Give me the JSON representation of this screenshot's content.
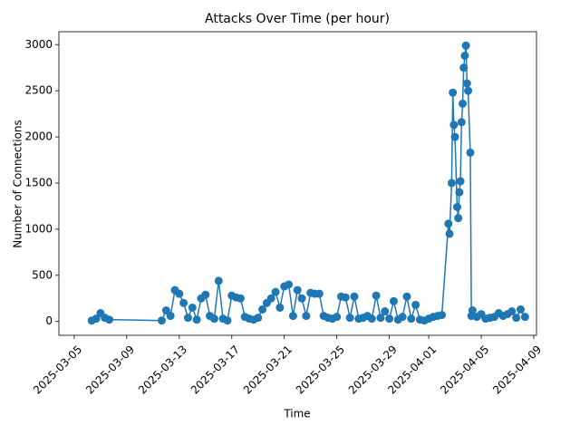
{
  "chart_data": {
    "type": "line",
    "title": "Attacks Over Time (per hour)",
    "x_label": "Time",
    "y_label": "Number of Connections",
    "color": "#1f77b4",
    "x": [
      "2025-03-06T08:00",
      "2025-03-06T16:00",
      "2025-03-07T00:00",
      "2025-03-07T08:00",
      "2025-03-07T16:00",
      "2025-03-11T16:00",
      "2025-03-12T00:00",
      "2025-03-12T08:00",
      "2025-03-12T16:00",
      "2025-03-13T00:00",
      "2025-03-13T08:00",
      "2025-03-13T16:00",
      "2025-03-14T00:00",
      "2025-03-14T08:00",
      "2025-03-14T16:00",
      "2025-03-15T00:00",
      "2025-03-15T08:00",
      "2025-03-15T16:00",
      "2025-03-16T00:00",
      "2025-03-16T08:00",
      "2025-03-16T16:00",
      "2025-03-17T00:00",
      "2025-03-17T08:00",
      "2025-03-17T16:00",
      "2025-03-18T00:00",
      "2025-03-18T08:00",
      "2025-03-18T16:00",
      "2025-03-19T00:00",
      "2025-03-19T08:00",
      "2025-03-19T16:00",
      "2025-03-20T00:00",
      "2025-03-20T08:00",
      "2025-03-20T16:00",
      "2025-03-21T00:00",
      "2025-03-21T08:00",
      "2025-03-21T16:00",
      "2025-03-22T00:00",
      "2025-03-22T08:00",
      "2025-03-22T16:00",
      "2025-03-23T00:00",
      "2025-03-23T08:00",
      "2025-03-23T16:00",
      "2025-03-24T00:00",
      "2025-03-24T08:00",
      "2025-03-24T16:00",
      "2025-03-25T00:00",
      "2025-03-25T08:00",
      "2025-03-25T16:00",
      "2025-03-26T00:00",
      "2025-03-26T08:00",
      "2025-03-26T16:00",
      "2025-03-27T00:00",
      "2025-03-27T08:00",
      "2025-03-27T16:00",
      "2025-03-28T00:00",
      "2025-03-28T08:00",
      "2025-03-28T16:00",
      "2025-03-29T00:00",
      "2025-03-29T08:00",
      "2025-03-29T16:00",
      "2025-03-30T00:00",
      "2025-03-30T08:00",
      "2025-03-30T16:00",
      "2025-03-31T00:00",
      "2025-03-31T08:00",
      "2025-03-31T16:00",
      "2025-04-01T00:00",
      "2025-04-01T08:00",
      "2025-04-01T16:00",
      "2025-04-02T00:00",
      "2025-04-02T12:00",
      "2025-04-02T14:00",
      "2025-04-02T18:00",
      "2025-04-02T20:00",
      "2025-04-02T22:00",
      "2025-04-03T00:00",
      "2025-04-03T04:00",
      "2025-04-03T06:00",
      "2025-04-03T08:00",
      "2025-04-03T10:00",
      "2025-04-03T12:00",
      "2025-04-03T14:00",
      "2025-04-03T16:00",
      "2025-04-03T18:00",
      "2025-04-03T20:00",
      "2025-04-03T22:00",
      "2025-04-04T00:00",
      "2025-04-04T04:00",
      "2025-04-04T06:00",
      "2025-04-04T08:00",
      "2025-04-04T16:00",
      "2025-04-05T00:00",
      "2025-04-05T08:00",
      "2025-04-05T16:00",
      "2025-04-06T00:00",
      "2025-04-06T08:00",
      "2025-04-06T16:00",
      "2025-04-07T00:00",
      "2025-04-07T08:00",
      "2025-04-07T16:00",
      "2025-04-08T00:00",
      "2025-04-08T08:00"
    ],
    "values": [
      10,
      30,
      90,
      40,
      20,
      10,
      120,
      60,
      340,
      300,
      200,
      40,
      150,
      20,
      250,
      290,
      60,
      30,
      440,
      30,
      10,
      280,
      260,
      250,
      50,
      30,
      20,
      40,
      130,
      200,
      250,
      320,
      150,
      380,
      400,
      60,
      340,
      250,
      60,
      310,
      300,
      300,
      60,
      40,
      30,
      50,
      270,
      260,
      40,
      270,
      30,
      40,
      60,
      30,
      280,
      40,
      110,
      30,
      220,
      20,
      50,
      270,
      30,
      180,
      20,
      10,
      30,
      50,
      60,
      70,
      1060,
      950,
      1500,
      2480,
      2130,
      2000,
      1240,
      1120,
      1400,
      1520,
      2160,
      2360,
      2750,
      2880,
      2990,
      2580,
      2500,
      1830,
      60,
      120,
      50,
      80,
      30,
      40,
      50,
      90,
      60,
      80,
      110,
      40,
      130,
      50
    ],
    "xlim": [
      "2025-03-03T20:00",
      "2025-04-09T05:00"
    ],
    "xticks": [
      "2025-03-05",
      "2025-03-09",
      "2025-03-13",
      "2025-03-17",
      "2025-03-21",
      "2025-03-25",
      "2025-03-29",
      "2025-04-01",
      "2025-04-05",
      "2025-04-09"
    ],
    "ylim": [
      -150,
      3140
    ],
    "yticks": [
      0,
      500,
      1000,
      1500,
      2000,
      2500,
      3000
    ]
  }
}
